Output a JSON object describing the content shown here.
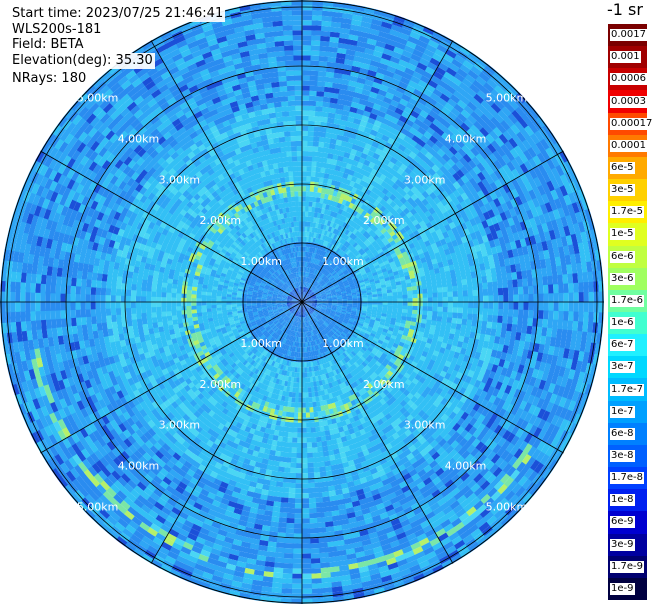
{
  "header": {
    "start_time": "Start time: 2023/07/25 21:46:41",
    "instrument": "WLS200s-181",
    "field": "Field: BETA",
    "elevation": "Elevation(deg): 35.30",
    "nrays": "NRays: 180"
  },
  "colorbar": {
    "title": "-1 sr",
    "labels": [
      "0.0017",
      "0.001",
      "0.0006",
      "0.0003",
      "0.00017",
      "0.0001",
      "6e-5",
      "3e-5",
      "1.7e-5",
      "1e-5",
      "6e-6",
      "3e-6",
      "1.7e-6",
      "1e-6",
      "6e-7",
      "3e-7",
      "1.7e-7",
      "1e-7",
      "6e-8",
      "3e-8",
      "1.7e-8",
      "1e-8",
      "6e-9",
      "3e-9",
      "1.7e-9",
      "1e-9"
    ],
    "colors": [
      "#7a0000",
      "#a00000",
      "#c80000",
      "#f00000",
      "#ff4a00",
      "#ff7a00",
      "#ffaa00",
      "#ffd000",
      "#ffee00",
      "#e0ff20",
      "#c0ff40",
      "#a0ff60",
      "#70ffa0",
      "#40ffd0",
      "#20f0ff",
      "#00d8ff",
      "#00bcff",
      "#00a0ff",
      "#0080ff",
      "#0060ff",
      "#0040ff",
      "#0020f0",
      "#0000d0",
      "#0000a0",
      "#000070",
      "#000040"
    ]
  },
  "chart_data": {
    "type": "heatmap",
    "projection": "polar (PPI scan)",
    "field": "BETA",
    "unit": "-1 sr",
    "range_rings_km": [
      1,
      2,
      3,
      4,
      5
    ],
    "range_ring_labels": [
      "1.00km",
      "2.00km",
      "3.00km",
      "4.00km",
      "5.00km"
    ],
    "azimuth_spokes_deg": [
      0,
      30,
      60,
      90,
      120,
      150,
      180,
      210,
      240,
      270,
      300,
      330
    ],
    "max_range_km": 5.0,
    "nrays": 180,
    "elevation_deg": 35.3,
    "color_scale": "log",
    "value_range": [
      1e-09,
      0.0017
    ],
    "background_level": 6e-08,
    "aerosol_ring_features": [
      {
        "range_km": 1.9,
        "level": 1e-06
      },
      {
        "range_km": 4.6,
        "level": 3e-06
      }
    ]
  }
}
